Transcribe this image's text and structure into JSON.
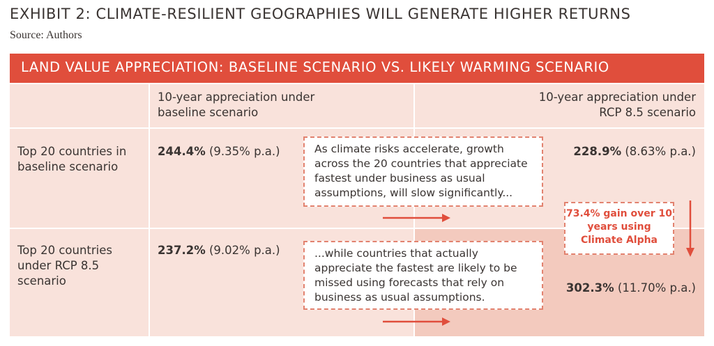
{
  "exhibit": {
    "title": "EXHIBIT 2: CLIMATE-RESILIENT GEOGRAPHIES WILL GENERATE HIGHER RETURNS",
    "source": "Source: Authors"
  },
  "colors": {
    "accent": "#e04e3c",
    "cell": "#f9e2db",
    "cell_highlight": "#f3cabe",
    "text": "#3a3432"
  },
  "chart_data": {
    "type": "table",
    "title": "LAND VALUE APPRECIATION: BASELINE SCENARIO VS. LIKELY WARMING SCENARIO",
    "columns": [
      "10-year appreciation under baseline scenario",
      "10-year appreciation under RCP 8.5 scenario"
    ],
    "rows": [
      {
        "label": "Top 20 countries in baseline scenario",
        "baseline": {
          "total": "244.4%",
          "annual": "(9.35% p.a.)"
        },
        "rcp85": {
          "total": "228.9%",
          "annual": "(8.63% p.a.)"
        }
      },
      {
        "label": "Top 20 countries under RCP 8.5 scenario",
        "baseline": {
          "total": "237.2%",
          "annual": "(9.02% p.a.)"
        },
        "rcp85": {
          "total": "302.3%",
          "annual": "(11.70% p.a.)"
        }
      }
    ],
    "annotations": {
      "callout_1": "As climate risks accelerate, growth across the 20 countries that appreciate fastest under business as usual assumptions, will slow significantly...",
      "callout_2": "...while countries that actually appreciate the fastest are likely to be missed using forecasts that rely on business as usual assumptions.",
      "gain": "73.4% gain over 10 years using Climate Alpha"
    }
  }
}
